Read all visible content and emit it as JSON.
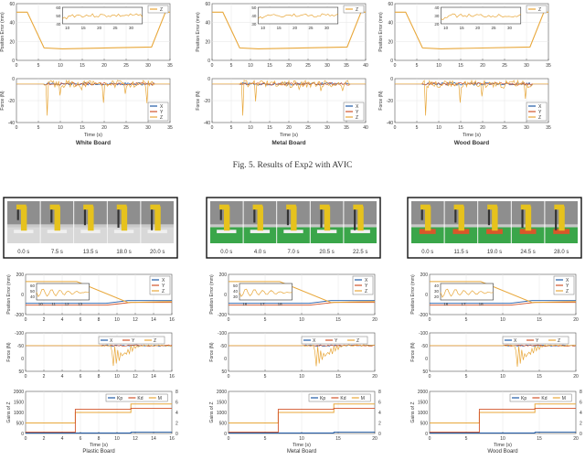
{
  "fig5": {
    "caption": "Fig. 5.   Results of Exp2 with AVIC",
    "panels": [
      {
        "label": "White Board",
        "pos_ylabel": "Position Error (mm)",
        "pos_yticks": [
          "0",
          "20",
          "40",
          "60"
        ],
        "pos_xticks": [
          "0",
          "5",
          "10",
          "15",
          "20",
          "25",
          "30",
          "35"
        ],
        "pos_legend": "Z",
        "inset_yticks": [
          "40",
          "50",
          "60"
        ],
        "inset_xticks": [
          "10",
          "15",
          "20",
          "25",
          "30"
        ],
        "force_ylabel": "Force (N)",
        "force_yticks": [
          "-40",
          "-20",
          "0"
        ],
        "force_xticks": [
          "0",
          "5",
          "10",
          "15",
          "20",
          "25",
          "30",
          "35"
        ],
        "force_legend": [
          "X",
          "Y",
          "Z"
        ],
        "xlabel": "Time (s)"
      },
      {
        "label": "Metal Board",
        "pos_ylabel": "Position Error (mm)",
        "pos_yticks": [
          "0",
          "20",
          "40",
          "60"
        ],
        "pos_xticks": [
          "0",
          "5",
          "10",
          "15",
          "20",
          "25",
          "30",
          "35",
          "40"
        ],
        "pos_legend": "Z",
        "inset_yticks": [
          "30",
          "40",
          "50"
        ],
        "inset_xticks": [
          "10",
          "15",
          "20",
          "25",
          "30"
        ],
        "force_ylabel": "Force (N)",
        "force_yticks": [
          "-40",
          "-20",
          "0"
        ],
        "force_xticks": [
          "0",
          "5",
          "10",
          "15",
          "20",
          "25",
          "30",
          "35",
          "40"
        ],
        "force_legend": [
          "X",
          "Y",
          "Z"
        ],
        "xlabel": "Time (s)"
      },
      {
        "label": "Wood Board",
        "pos_ylabel": "Position Error (mm)",
        "pos_yticks": [
          "0",
          "20",
          "40",
          "60"
        ],
        "pos_xticks": [
          "0",
          "5",
          "10",
          "15",
          "20",
          "25",
          "30",
          "35"
        ],
        "pos_legend": "Z",
        "inset_yticks": [
          "20",
          "30",
          "40"
        ],
        "inset_xticks": [
          "10",
          "15",
          "20",
          "25",
          "30"
        ],
        "force_ylabel": "Force (N)",
        "force_yticks": [
          "-40",
          "-20",
          "0"
        ],
        "force_xticks": [
          "0",
          "5",
          "10",
          "15",
          "20",
          "25",
          "30",
          "35"
        ],
        "force_legend": [
          "X",
          "Y",
          "Z"
        ],
        "xlabel": "Time (s)"
      }
    ]
  },
  "fig6": {
    "panels": [
      {
        "label": "Plastic Board",
        "frame_times": [
          "0.0 s",
          "7.5 s",
          "13.5 s",
          "18.0 s",
          "20.0 s"
        ],
        "floor": "#d8d8d8",
        "pos_ylabel": "Position Error (mm)",
        "pos_yticks": [
          "-200",
          "0",
          "200"
        ],
        "pos_legend": [
          "X",
          "Y",
          "Z"
        ],
        "inset_yticks": [
          "60",
          "50",
          "40"
        ],
        "inset_xticks": [
          "10",
          "11",
          "12",
          "13"
        ],
        "force_ylabel": "Force (N)",
        "force_yticks": [
          "50",
          "0",
          "-50",
          "-100"
        ],
        "force_legend": [
          "X",
          "Y",
          "Z"
        ],
        "gain_ylabel": "Gains of Z",
        "gain_yticks": [
          "0",
          "500",
          "1000",
          "1500",
          "2000"
        ],
        "gain_rticks": [
          "0",
          "2",
          "4",
          "6",
          "8"
        ],
        "gain_legend": [
          "Kp",
          "Kd",
          "M"
        ],
        "xticks": [
          "0",
          "2",
          "4",
          "6",
          "8",
          "10",
          "12",
          "14",
          "16"
        ],
        "xlabel": "Time (s)"
      },
      {
        "label": "Metal Board",
        "frame_times": [
          "0.0 s",
          "4.0 s",
          "7.0 s",
          "20.5 s",
          "22.5 s"
        ],
        "floor": "#3aa64a",
        "pos_ylabel": "Position Error (mm)",
        "pos_yticks": [
          "-200",
          "0",
          "200"
        ],
        "pos_legend": [
          "X",
          "Y",
          "Z"
        ],
        "inset_yticks": [
          "50",
          "40",
          "30"
        ],
        "inset_xticks": [
          "16",
          "17",
          "18"
        ],
        "force_ylabel": "Force (N)",
        "force_yticks": [
          "50",
          "0",
          "-50",
          "-100"
        ],
        "force_legend": [
          "X",
          "Y",
          "Z"
        ],
        "gain_ylabel": "Gains of Z",
        "gain_yticks": [
          "0",
          "500",
          "1000",
          "1500",
          "2000"
        ],
        "gain_rticks": [
          "0",
          "2",
          "4",
          "6",
          "8"
        ],
        "gain_legend": [
          "Kp",
          "Kd",
          "M"
        ],
        "xticks": [
          "0",
          "5",
          "10",
          "15",
          "20"
        ],
        "xlabel": "Time (s)"
      },
      {
        "label": "Wood Board",
        "frame_times": [
          "0.0 s",
          "11.5 s",
          "19.0 s",
          "24.5 s",
          "28.0 s"
        ],
        "floor": "#3aa64a",
        "pos_ylabel": "Position Error (mm)",
        "pos_yticks": [
          "-200",
          "0",
          "200"
        ],
        "pos_legend": [
          "X",
          "Y",
          "Z"
        ],
        "inset_yticks": [
          "40",
          "30",
          "20"
        ],
        "inset_xticks": [
          "16",
          "17",
          "18"
        ],
        "force_ylabel": "Force (N)",
        "force_yticks": [
          "50",
          "0",
          "-50",
          "-100"
        ],
        "force_legend": [
          "X",
          "Y",
          "Z"
        ],
        "gain_ylabel": "Gains of Z",
        "gain_yticks": [
          "0",
          "500",
          "1000",
          "1500",
          "2000"
        ],
        "gain_rticks": [
          "0",
          "2",
          "4",
          "6",
          "8"
        ],
        "gain_legend": [
          "Kp",
          "Kd",
          "M"
        ],
        "xticks": [
          "0",
          "5",
          "10",
          "15",
          "20"
        ],
        "xlabel": "Time (s)"
      }
    ]
  },
  "colors": {
    "x": "#1f5aa6",
    "y": "#d2542a",
    "z": "#e8a73a",
    "grid": "#e6e6e6",
    "axis": "#555555"
  }
}
